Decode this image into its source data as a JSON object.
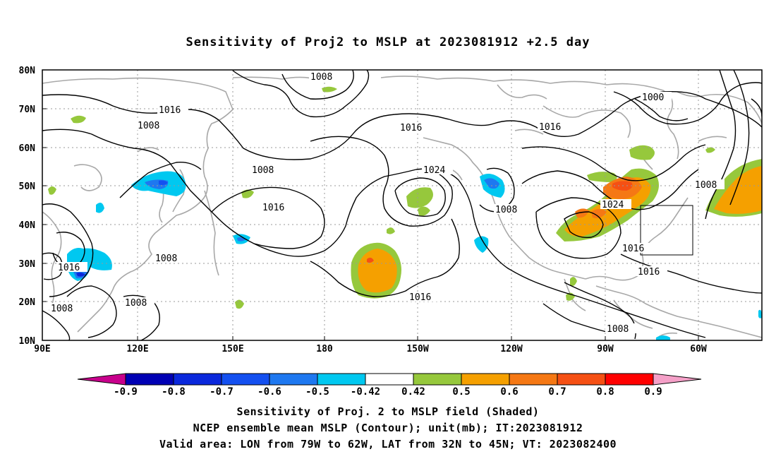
{
  "title": "Sensitivity of Proj2 to MSLP at 2023081912 +2.5 day",
  "axes": {
    "lon_labels": [
      "90E",
      "120E",
      "150E",
      "180",
      "150W",
      "120W",
      "90W",
      "60W"
    ],
    "lat_labels": [
      "80N",
      "70N",
      "60N",
      "50N",
      "40N",
      "30N",
      "20N",
      "10N"
    ]
  },
  "contour_labels": [
    "1008",
    "1016",
    "1008",
    "1008",
    "1016",
    "1008",
    "1016",
    "1024",
    "1016",
    "1008",
    "1000",
    "1016",
    "1008",
    "1024",
    "1016",
    "1016",
    "1016",
    "1008",
    "1008",
    "1008",
    "1016"
  ],
  "colorbar": {
    "tick_labels": [
      "-0.9",
      "-0.8",
      "-0.7",
      "-0.6",
      "-0.5",
      "-0.42",
      "0.42",
      "0.5",
      "0.6",
      "0.7",
      "0.8",
      "0.9"
    ],
    "colors": [
      "#c8008c",
      "#0000b4",
      "#0a28dc",
      "#1450f0",
      "#1e78f0",
      "#00c8f0",
      "#ffffff",
      "#96c83c",
      "#f5a000",
      "#f57814",
      "#f55014",
      "#ff0000",
      "#f5a0c8"
    ]
  },
  "captions": {
    "line1": "Sensitivity of Proj. 2 to MSLP field (Shaded)",
    "line2": "NCEP ensemble mean MSLP (Contour); unit(mb); IT:2023081912",
    "line3": "Valid area: LON from 79W to 62W, LAT from 32N to 45N; VT: 2023082400"
  }
}
